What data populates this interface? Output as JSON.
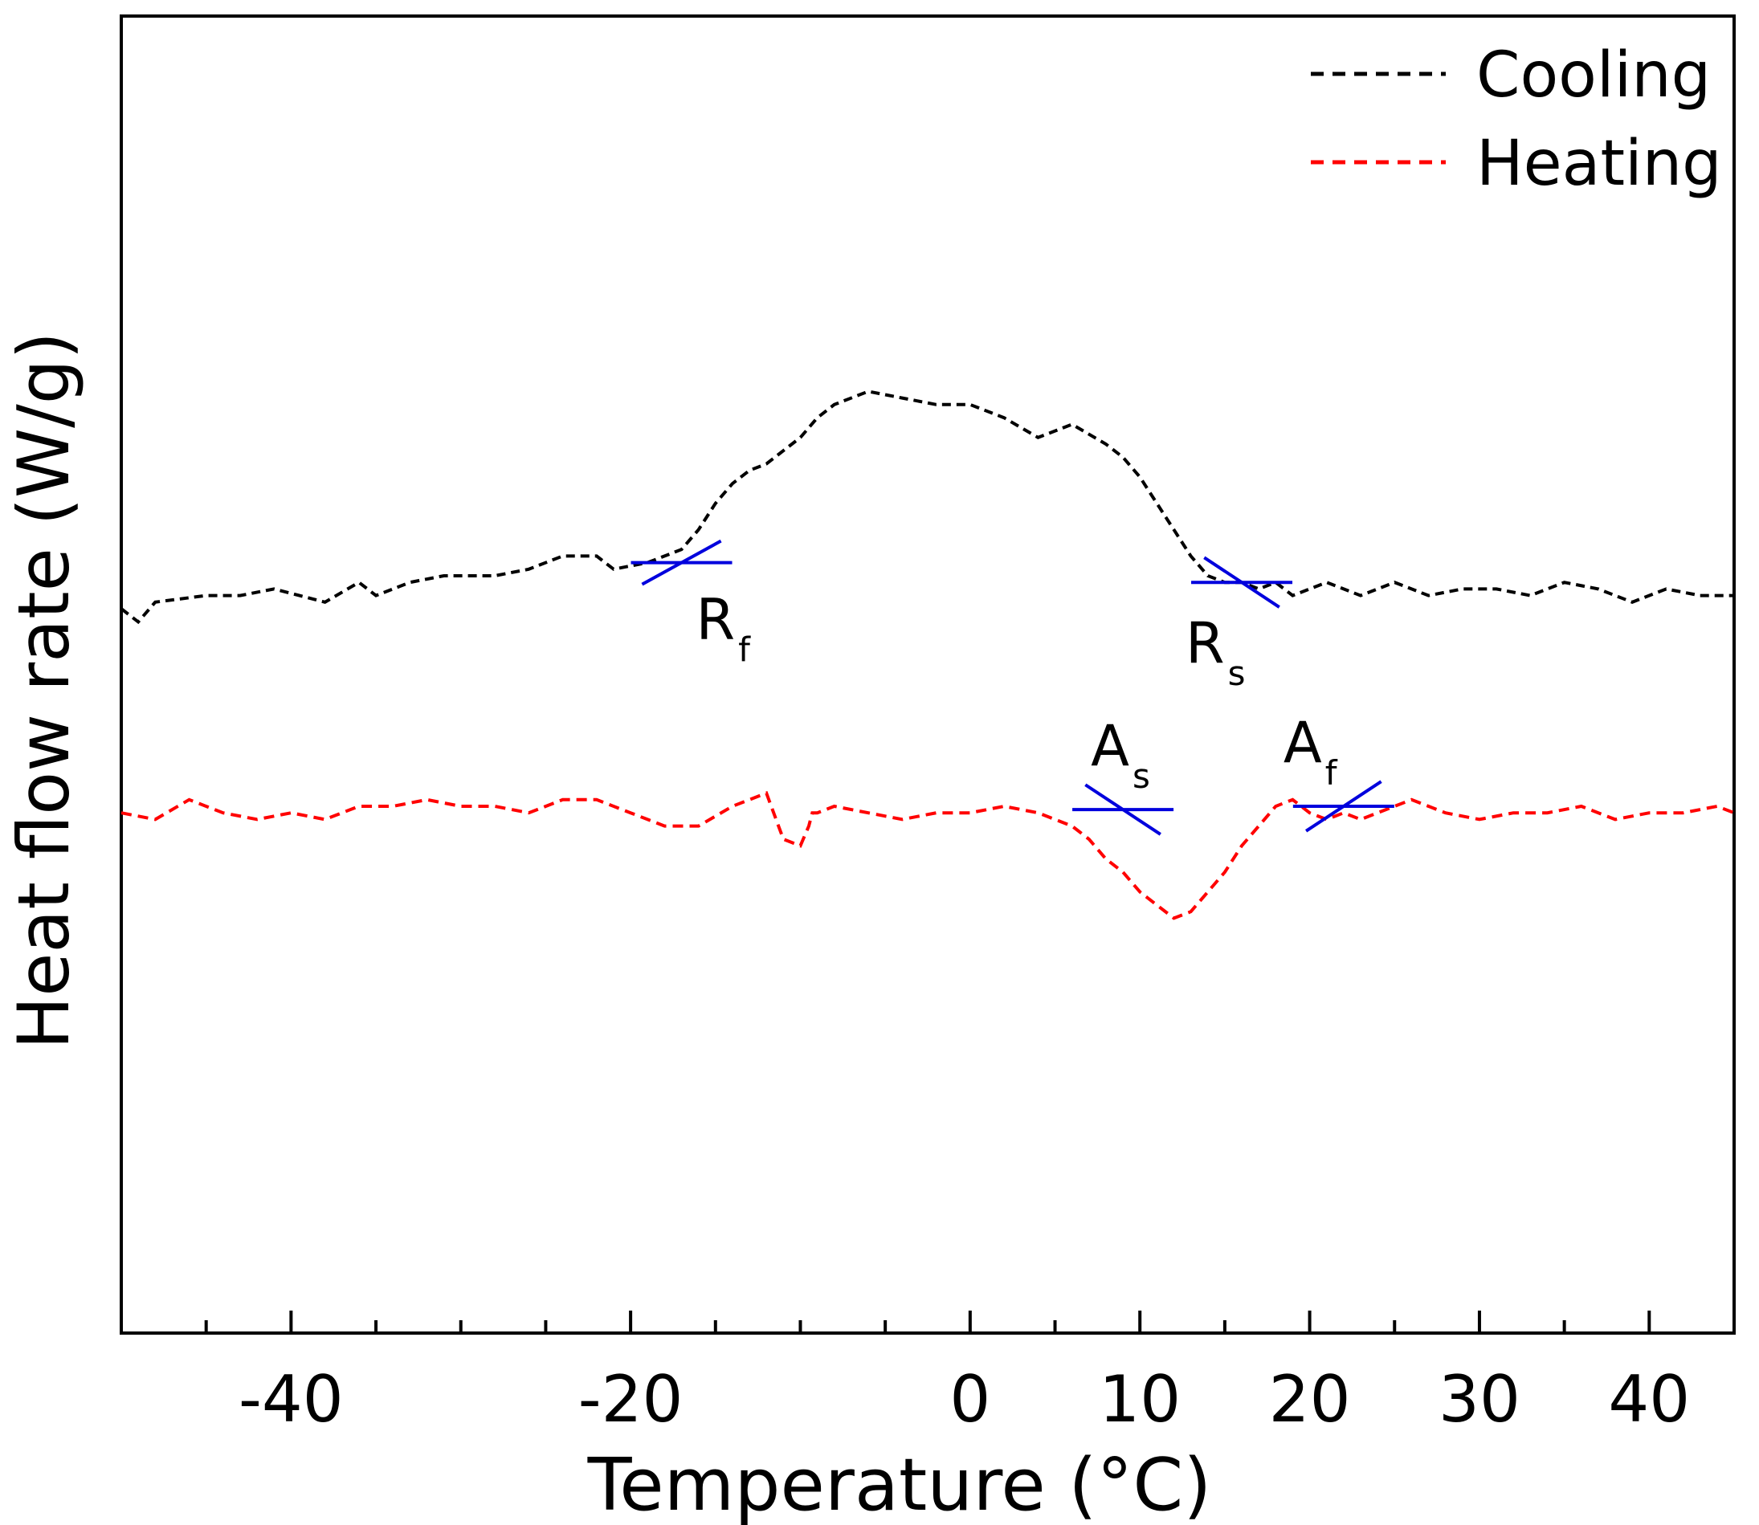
{
  "chart_data": {
    "type": "line",
    "title": "",
    "xlabel": "Temperature (°C)",
    "ylabel": "Heat flow rate (W/g)",
    "xlim": [
      -50,
      45
    ],
    "xticks": [
      -40,
      -20,
      0,
      10,
      20,
      30,
      40
    ],
    "ylim": [
      -10,
      10
    ],
    "yticks_shown": false,
    "grid": false,
    "legend_position": "top-right",
    "legend": [
      {
        "label": "Cooling",
        "color": "#000000",
        "style": "dashed"
      },
      {
        "label": "Heating",
        "color": "#ff0000",
        "style": "dashed"
      }
    ],
    "series": [
      {
        "name": "Cooling",
        "color": "#000000",
        "style": "dashed",
        "x": [
          -50,
          -49,
          -48,
          -45,
          -43,
          -41,
          -38,
          -36,
          -35,
          -33,
          -31,
          -28,
          -26,
          -24,
          -22,
          -21,
          -19,
          -18,
          -17,
          -16,
          -15,
          -14,
          -13,
          -12,
          -11,
          -10,
          -9,
          -8,
          -6,
          -4,
          -2,
          0,
          2,
          4,
          6,
          8,
          9,
          10,
          11,
          12,
          13,
          14,
          15,
          16,
          17,
          18,
          19,
          21,
          23,
          25,
          27,
          29,
          31,
          33,
          35,
          37,
          39,
          41,
          43,
          45
        ],
        "y": [
          1.0,
          0.8,
          1.1,
          1.2,
          1.2,
          1.3,
          1.1,
          1.4,
          1.2,
          1.4,
          1.5,
          1.5,
          1.6,
          1.8,
          1.8,
          1.6,
          1.7,
          1.8,
          1.9,
          2.2,
          2.6,
          2.9,
          3.1,
          3.2,
          3.4,
          3.6,
          3.9,
          4.1,
          4.3,
          4.2,
          4.1,
          4.1,
          3.9,
          3.6,
          3.8,
          3.5,
          3.3,
          3.0,
          2.6,
          2.2,
          1.8,
          1.5,
          1.4,
          1.4,
          1.3,
          1.4,
          1.2,
          1.4,
          1.2,
          1.4,
          1.2,
          1.3,
          1.3,
          1.2,
          1.4,
          1.3,
          1.1,
          1.3,
          1.2,
          1.2
        ]
      },
      {
        "name": "Heating",
        "color": "#ff0000",
        "style": "dashed",
        "x": [
          -50,
          -48,
          -46,
          -44,
          -42,
          -40,
          -38,
          -36,
          -34,
          -32,
          -30,
          -28,
          -26,
          -24,
          -22,
          -20,
          -18,
          -16,
          -14,
          -12,
          -11,
          -10,
          -9.5,
          -9.3,
          -9,
          -8,
          -6,
          -4,
          -2,
          0,
          2,
          4,
          6,
          7,
          8,
          9,
          10,
          11,
          12,
          13,
          14,
          15,
          16,
          17,
          18,
          19,
          20,
          21,
          22,
          23,
          24,
          26,
          28,
          30,
          32,
          34,
          36,
          38,
          40,
          42,
          44,
          45
        ],
        "y": [
          -2.1,
          -2.2,
          -1.9,
          -2.1,
          -2.2,
          -2.1,
          -2.2,
          -2.0,
          -2.0,
          -1.9,
          -2.0,
          -2.0,
          -2.1,
          -1.9,
          -1.9,
          -2.1,
          -2.3,
          -2.3,
          -2.0,
          -1.8,
          -2.5,
          -2.6,
          -2.3,
          -2.1,
          -2.1,
          -2.0,
          -2.1,
          -2.2,
          -2.1,
          -2.1,
          -2.0,
          -2.1,
          -2.3,
          -2.5,
          -2.8,
          -3.0,
          -3.3,
          -3.5,
          -3.7,
          -3.6,
          -3.3,
          -3.0,
          -2.6,
          -2.3,
          -2.0,
          -1.9,
          -2.1,
          -2.2,
          -2.1,
          -2.2,
          -2.1,
          -1.9,
          -2.1,
          -2.2,
          -2.1,
          -2.1,
          -2.0,
          -2.2,
          -2.1,
          -2.1,
          -2.0,
          -2.1
        ]
      }
    ],
    "annotations": [
      {
        "label": "R",
        "subscript": "f",
        "marker_x": -17,
        "marker_y": 1.7,
        "tangent_slope": 0.25
      },
      {
        "label": "R",
        "subscript": "s",
        "marker_x": 16,
        "marker_y": 1.4,
        "tangent_slope": -0.3
      },
      {
        "label": "A",
        "subscript": "s",
        "marker_x": 9,
        "marker_y": -2.05,
        "tangent_slope": -0.3
      },
      {
        "label": "A",
        "subscript": "f",
        "marker_x": 22,
        "marker_y": -2.0,
        "tangent_slope": 0.3
      }
    ],
    "annotation_color": "#0000dd"
  }
}
